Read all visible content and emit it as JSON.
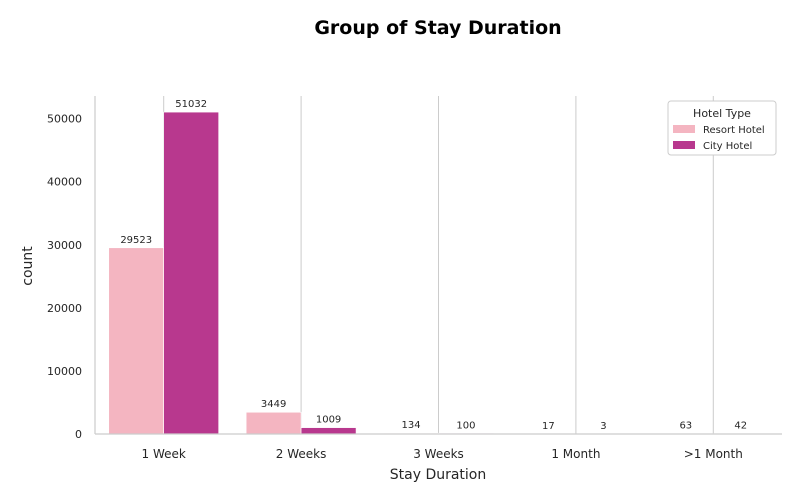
{
  "chart_data": {
    "type": "bar",
    "title": "Group of Stay Duration",
    "xlabel": "Stay Duration",
    "ylabel": "count",
    "categories": [
      "1 Week",
      "2 Weeks",
      "3 Weeks",
      "1 Month",
      ">1 Month"
    ],
    "series": [
      {
        "name": "Resort Hotel",
        "values": [
          29523,
          3449,
          134,
          17,
          63
        ],
        "color": "#f4b5c1"
      },
      {
        "name": "City Hotel",
        "values": [
          51032,
          1009,
          100,
          3,
          42
        ],
        "color": "#b8388e"
      }
    ],
    "yticks": [
      0,
      10000,
      20000,
      30000,
      40000,
      50000
    ],
    "ylim": [
      0,
      53584
    ],
    "grid": "vertical",
    "legend": {
      "title": "Hotel Type",
      "position": "top-right"
    }
  }
}
